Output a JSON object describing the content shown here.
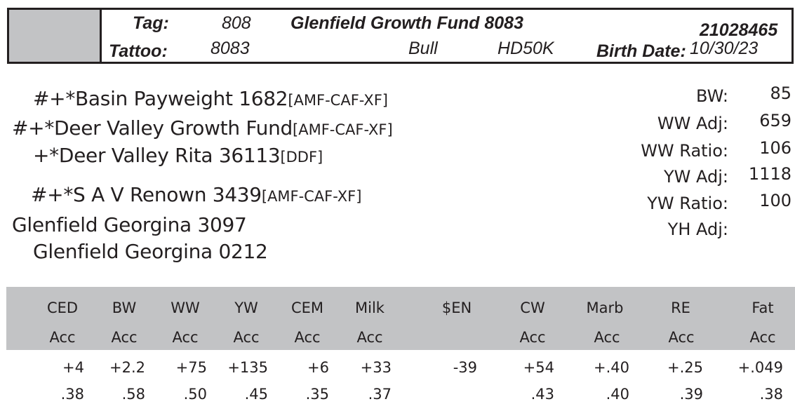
{
  "header": {
    "tag_label": "Tag:",
    "tag": "808",
    "tattoo_label": "Tattoo:",
    "tattoo": "8083",
    "name": "Glenfield Growth Fund 8083",
    "sex": "Bull",
    "hd": "HD50K",
    "birth_date_label": "Birth Date:",
    "birth_date": "10/30/23",
    "registration": "21028465",
    "swatch_color": "#c2c3c5"
  },
  "pedigree": {
    "sire_sire": {
      "name": "#+*Basin Payweight 1682",
      "status": "[AMF-CAF-XF]"
    },
    "sire": {
      "name": "#+*Deer Valley Growth Fund",
      "status": "[AMF-CAF-XF]"
    },
    "sire_dam": {
      "name": "+*Deer Valley Rita 36113",
      "status": "[DDF]"
    },
    "dam_sire": {
      "name": "#+*S A V Renown 3439",
      "status": "[AMF-CAF-XF]"
    },
    "dam": {
      "name": "Glenfield Georgina 3097",
      "status": ""
    },
    "dam_dam": {
      "name": "Glenfield Georgina 0212",
      "status": ""
    }
  },
  "performance": [
    {
      "label": "BW:",
      "value": "85"
    },
    {
      "label": "WW Adj:",
      "value": "659"
    },
    {
      "label": "WW Ratio:",
      "value": "106"
    },
    {
      "label": "YW Adj:",
      "value": "1118"
    },
    {
      "label": "YW Ratio:",
      "value": "100"
    },
    {
      "label": "YH Adj:",
      "value": ""
    }
  ],
  "epd": {
    "band_color": "#c2c3c5",
    "columns": [
      {
        "trait": "CED",
        "acc_label": "Acc",
        "value": "+4",
        "acc": ".38"
      },
      {
        "trait": "BW",
        "acc_label": "Acc",
        "value": "+2.2",
        "acc": ".58"
      },
      {
        "trait": "WW",
        "acc_label": "Acc",
        "value": "+75",
        "acc": ".50"
      },
      {
        "trait": "YW",
        "acc_label": "Acc",
        "value": "+135",
        "acc": ".45"
      },
      {
        "trait": "CEM",
        "acc_label": "Acc",
        "value": "+6",
        "acc": ".35"
      },
      {
        "trait": "Milk",
        "acc_label": "Acc",
        "value": "+33",
        "acc": ".37"
      },
      {
        "trait": "$EN",
        "acc_label": "",
        "value": "-39",
        "acc": ""
      },
      {
        "trait": "CW",
        "acc_label": "Acc",
        "value": "+54",
        "acc": ".43"
      },
      {
        "trait": "Marb",
        "acc_label": "Acc",
        "value": "+.40",
        "acc": ".40"
      },
      {
        "trait": "RE",
        "acc_label": "Acc",
        "value": "+.25",
        "acc": ".39"
      },
      {
        "trait": "Fat",
        "acc_label": "Acc",
        "value": "+.049",
        "acc": ".38"
      }
    ]
  }
}
